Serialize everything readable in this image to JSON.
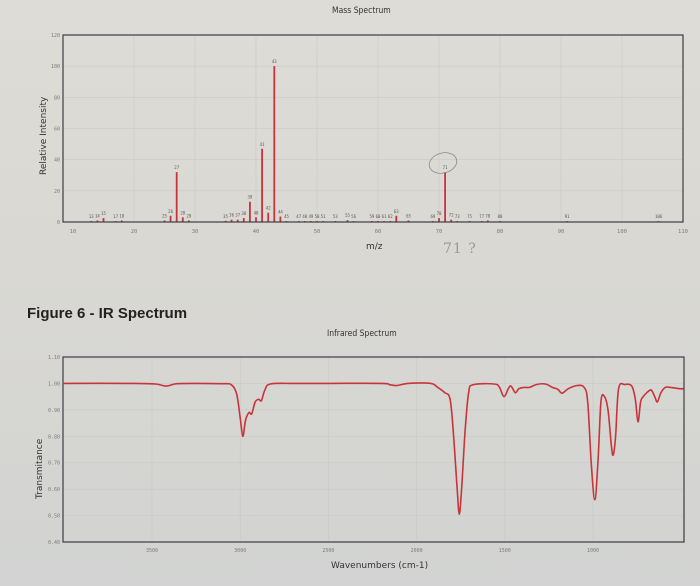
{
  "colors": {
    "trace": "#c8343a",
    "frame": "#3c3c44",
    "grid": "#c9c9c6",
    "tick_text": "#7a7a7a",
    "annotation_circle": "#888888"
  },
  "mass_spectrum": {
    "title": "Mass Spectrum",
    "xlabel": "m/z",
    "ylabel": "Relative Intensity",
    "handwritten_note": "71 ?"
  },
  "figure_caption": "Figure 6 - IR Spectrum",
  "ir_spectrum": {
    "title": "Infrared Spectrum",
    "xlabel": "Wavenumbers (cm-1)",
    "ylabel": "Transmitance"
  },
  "chart_data": [
    {
      "type": "bar",
      "title": "Mass Spectrum",
      "xlabel": "m/z",
      "ylabel": "Relative Intensity",
      "xlim": [
        7,
        111
      ],
      "ylim": [
        0,
        120
      ],
      "xticks": [
        10,
        20,
        30,
        40,
        50,
        60,
        70,
        80,
        90,
        100,
        110
      ],
      "yticks": [
        0,
        20,
        40,
        60,
        80,
        100,
        120
      ],
      "grid": true,
      "annotation": {
        "circled_peak": 71,
        "handwritten": "71 ?"
      },
      "peaks": [
        {
          "mz": 13,
          "intensity": 0.5
        },
        {
          "mz": 14,
          "intensity": 1
        },
        {
          "mz": 15,
          "intensity": 2.5
        },
        {
          "mz": 17,
          "intensity": 0.5
        },
        {
          "mz": 18,
          "intensity": 1
        },
        {
          "mz": 25,
          "intensity": 1
        },
        {
          "mz": 26,
          "intensity": 4
        },
        {
          "mz": 27,
          "intensity": 32
        },
        {
          "mz": 28,
          "intensity": 3
        },
        {
          "mz": 29,
          "intensity": 1
        },
        {
          "mz": 35,
          "intensity": 0.8
        },
        {
          "mz": 36,
          "intensity": 1.5
        },
        {
          "mz": 37,
          "intensity": 1.5
        },
        {
          "mz": 38,
          "intensity": 2.5
        },
        {
          "mz": 39,
          "intensity": 13
        },
        {
          "mz": 40,
          "intensity": 3
        },
        {
          "mz": 41,
          "intensity": 47
        },
        {
          "mz": 42,
          "intensity": 6
        },
        {
          "mz": 43,
          "intensity": 100
        },
        {
          "mz": 44,
          "intensity": 3.5
        },
        {
          "mz": 45,
          "intensity": 0.5
        },
        {
          "mz": 47,
          "intensity": 0.3
        },
        {
          "mz": 48,
          "intensity": 0.3
        },
        {
          "mz": 49,
          "intensity": 0.5
        },
        {
          "mz": 50,
          "intensity": 0.5
        },
        {
          "mz": 51,
          "intensity": 0.3
        },
        {
          "mz": 53,
          "intensity": 0.5
        },
        {
          "mz": 55,
          "intensity": 1.2
        },
        {
          "mz": 56,
          "intensity": 0.5
        },
        {
          "mz": 59,
          "intensity": 0.3
        },
        {
          "mz": 60,
          "intensity": 0.3
        },
        {
          "mz": 61,
          "intensity": 0.3
        },
        {
          "mz": 62,
          "intensity": 0.5
        },
        {
          "mz": 63,
          "intensity": 4
        },
        {
          "mz": 65,
          "intensity": 1
        },
        {
          "mz": 69,
          "intensity": 0.5
        },
        {
          "mz": 70,
          "intensity": 2.5
        },
        {
          "mz": 71,
          "intensity": 32
        },
        {
          "mz": 72,
          "intensity": 1.5
        },
        {
          "mz": 73,
          "intensity": 0.3
        },
        {
          "mz": 75,
          "intensity": 0.3
        },
        {
          "mz": 77,
          "intensity": 0.5
        },
        {
          "mz": 78,
          "intensity": 1
        },
        {
          "mz": 80,
          "intensity": 0.3
        },
        {
          "mz": 91,
          "intensity": 0.5
        },
        {
          "mz": 106,
          "intensity": 0.3
        }
      ],
      "peak_labels": [
        {
          "text": "13",
          "mz": 13
        },
        {
          "text": "14",
          "mz": 14
        },
        {
          "text": "15",
          "mz": 15
        },
        {
          "text": "17",
          "mz": 17
        },
        {
          "text": "18",
          "mz": 18
        },
        {
          "text": "25",
          "mz": 25
        },
        {
          "text": "26",
          "mz": 26
        },
        {
          "text": "27",
          "mz": 27
        },
        {
          "text": "28",
          "mz": 28
        },
        {
          "text": "29",
          "mz": 29
        },
        {
          "text": "35",
          "mz": 35
        },
        {
          "text": "36",
          "mz": 36
        },
        {
          "text": "37",
          "mz": 37
        },
        {
          "text": "38",
          "mz": 38
        },
        {
          "text": "39",
          "mz": 39
        },
        {
          "text": "40",
          "mz": 40
        },
        {
          "text": "41",
          "mz": 41
        },
        {
          "text": "42",
          "mz": 42
        },
        {
          "text": "43",
          "mz": 43
        },
        {
          "text": "44",
          "mz": 44
        },
        {
          "text": "45",
          "mz": 45
        },
        {
          "text": "47",
          "mz": 47
        },
        {
          "text": "48",
          "mz": 48
        },
        {
          "text": "49",
          "mz": 49
        },
        {
          "text": "50",
          "mz": 50
        },
        {
          "text": "51",
          "mz": 51
        },
        {
          "text": "53",
          "mz": 53
        },
        {
          "text": "55",
          "mz": 55
        },
        {
          "text": "56",
          "mz": 56
        },
        {
          "text": "59",
          "mz": 59
        },
        {
          "text": "60",
          "mz": 60
        },
        {
          "text": "61",
          "mz": 61
        },
        {
          "text": "62",
          "mz": 62
        },
        {
          "text": "63",
          "mz": 63
        },
        {
          "text": "65",
          "mz": 65
        },
        {
          "text": "69",
          "mz": 69
        },
        {
          "text": "70",
          "mz": 70
        },
        {
          "text": "71",
          "mz": 71
        },
        {
          "text": "72",
          "mz": 72
        },
        {
          "text": "73",
          "mz": 73
        },
        {
          "text": "75",
          "mz": 75
        },
        {
          "text": "77",
          "mz": 77
        },
        {
          "text": "78",
          "mz": 78
        },
        {
          "text": "80",
          "mz": 80
        },
        {
          "text": "91",
          "mz": 91
        },
        {
          "text": "106",
          "mz": 106
        }
      ]
    },
    {
      "type": "line",
      "title": "Infrared Spectrum",
      "xlabel": "Wavenumbers (cm-1)",
      "ylabel": "Transmitance",
      "xlim": [
        4000,
        470
      ],
      "ylim": [
        0.4,
        1.1
      ],
      "xticks": [
        3500,
        3000,
        2500,
        2000,
        1500,
        1000
      ],
      "yticks": [
        0.4,
        0.5,
        0.6,
        0.7,
        0.8,
        0.9,
        1.0,
        1.1
      ],
      "ytick_labels": [
        "0.40",
        "0.50",
        "0.60",
        "0.70",
        "0.80",
        "0.90",
        "1.00",
        "1.10"
      ],
      "grid": true,
      "series": [
        {
          "name": "Transmittance",
          "points": [
            [
              4000,
              1.0
            ],
            [
              3600,
              1.0
            ],
            [
              3480,
              0.998
            ],
            [
              3420,
              0.99
            ],
            [
              3360,
              0.999
            ],
            [
              3250,
              1.0
            ],
            [
              3100,
              0.999
            ],
            [
              3050,
              0.995
            ],
            [
              3020,
              0.96
            ],
            [
              3000,
              0.87
            ],
            [
              2985,
              0.8
            ],
            [
              2970,
              0.86
            ],
            [
              2950,
              0.89
            ],
            [
              2935,
              0.885
            ],
            [
              2915,
              0.93
            ],
            [
              2895,
              0.94
            ],
            [
              2880,
              0.935
            ],
            [
              2860,
              0.975
            ],
            [
              2830,
              0.998
            ],
            [
              2700,
              1.0
            ],
            [
              2500,
              1.0
            ],
            [
              2200,
              1.0
            ],
            [
              2150,
              0.995
            ],
            [
              2110,
              0.992
            ],
            [
              2050,
              1.0
            ],
            [
              1920,
              1.0
            ],
            [
              1880,
              0.985
            ],
            [
              1840,
              0.965
            ],
            [
              1810,
              0.94
            ],
            [
              1790,
              0.8
            ],
            [
              1770,
              0.6
            ],
            [
              1758,
              0.505
            ],
            [
              1745,
              0.6
            ],
            [
              1725,
              0.82
            ],
            [
              1705,
              0.965
            ],
            [
              1680,
              0.995
            ],
            [
              1560,
              0.998
            ],
            [
              1530,
              0.985
            ],
            [
              1505,
              0.95
            ],
            [
              1480,
              0.98
            ],
            [
              1465,
              0.99
            ],
            [
              1440,
              0.965
            ],
            [
              1420,
              0.98
            ],
            [
              1390,
              0.985
            ],
            [
              1360,
              0.985
            ],
            [
              1320,
              0.996
            ],
            [
              1270,
              0.998
            ],
            [
              1230,
              0.985
            ],
            [
              1200,
              0.978
            ],
            [
              1175,
              0.963
            ],
            [
              1140,
              0.98
            ],
            [
              1090,
              0.992
            ],
            [
              1050,
              0.985
            ],
            [
              1030,
              0.93
            ],
            [
              1010,
              0.7
            ],
            [
              990,
              0.56
            ],
            [
              972,
              0.7
            ],
            [
              955,
              0.93
            ],
            [
              935,
              0.95
            ],
            [
              915,
              0.9
            ],
            [
              895,
              0.76
            ],
            [
              885,
              0.73
            ],
            [
              872,
              0.8
            ],
            [
              855,
              0.98
            ],
            [
              820,
              0.996
            ],
            [
              780,
              0.99
            ],
            [
              760,
              0.94
            ],
            [
              745,
              0.855
            ],
            [
              730,
              0.93
            ],
            [
              715,
              0.95
            ],
            [
              695,
              0.965
            ],
            [
              670,
              0.975
            ],
            [
              650,
              0.95
            ],
            [
              635,
              0.93
            ],
            [
              615,
              0.965
            ],
            [
              590,
              0.985
            ],
            [
              560,
              0.985
            ],
            [
              510,
              0.98
            ],
            [
              470,
              0.98
            ]
          ]
        }
      ]
    }
  ]
}
